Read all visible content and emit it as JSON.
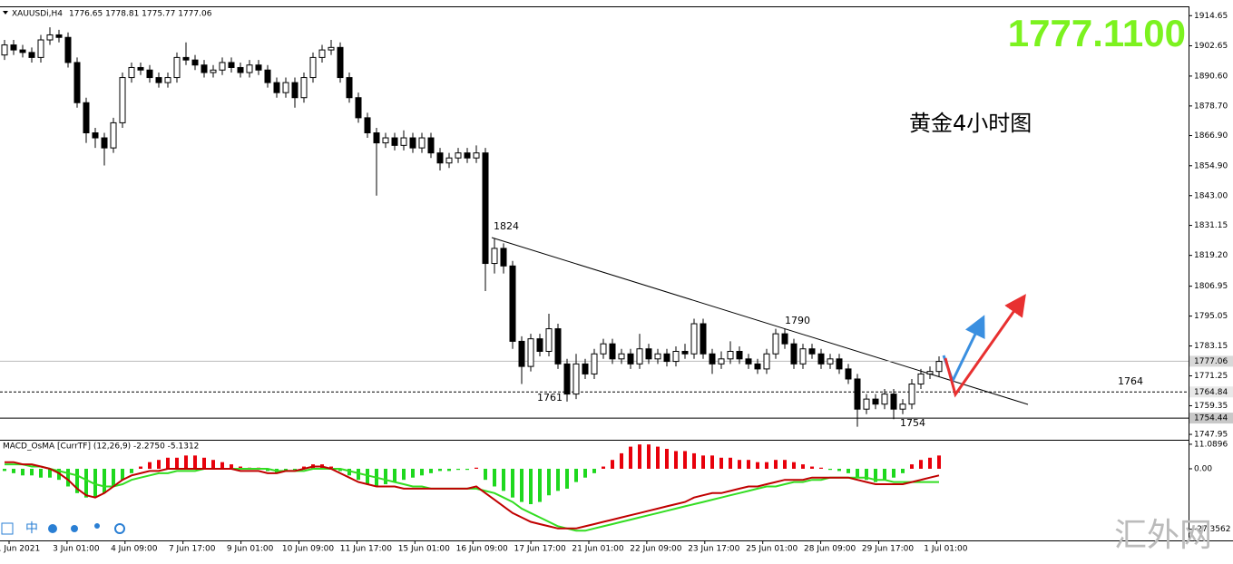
{
  "chart_data": [
    {
      "type": "candlestick",
      "symbol": "XAUUSDi,H4",
      "ohlc_label": "1776.65 1778.81 1775.77 1777.06",
      "price_display": "1777.1100",
      "subtitle": "黄金4小时图",
      "annotations": [
        "1824",
        "1790",
        "1761",
        "1754",
        "1764"
      ],
      "open": [
        1899,
        1903,
        1901,
        1900,
        1898,
        1905,
        1907,
        1906,
        1896,
        1880,
        1868,
        1866,
        1862,
        1872,
        1890,
        1894,
        1893,
        1890,
        1888,
        1890,
        1898,
        1897,
        1895,
        1892,
        1893,
        1896,
        1894,
        1892,
        1895,
        1893,
        1888,
        1884,
        1888,
        1882,
        1890,
        1898,
        1901,
        1902,
        1890,
        1882,
        1874,
        1868,
        1864,
        1866,
        1863,
        1866,
        1862,
        1866,
        1860,
        1856,
        1858,
        1860,
        1858,
        1860,
        1816,
        1822,
        1815,
        1785,
        1775,
        1786,
        1781,
        1790,
        1776,
        1764,
        1776,
        1772,
        1780,
        1784,
        1778,
        1780,
        1776,
        1782,
        1778,
        1780,
        1777,
        1781,
        1780,
        1792,
        1780,
        1776,
        1778,
        1781,
        1778,
        1776,
        1774,
        1780,
        1788,
        1784,
        1776,
        1782,
        1780,
        1776,
        1778,
        1774,
        1770,
        1758,
        1762,
        1760,
        1764,
        1758,
        1760,
        1768,
        1772,
        1773
      ],
      "high": [
        1905,
        1905,
        1903,
        1902,
        1907,
        1910,
        1909,
        1908,
        1898,
        1882,
        1870,
        1868,
        1874,
        1892,
        1896,
        1896,
        1895,
        1892,
        1892,
        1900,
        1904,
        1899,
        1897,
        1895,
        1898,
        1898,
        1896,
        1897,
        1897,
        1895,
        1890,
        1890,
        1890,
        1892,
        1900,
        1903,
        1905,
        1904,
        1892,
        1884,
        1876,
        1870,
        1868,
        1868,
        1869,
        1868,
        1868,
        1868,
        1862,
        1860,
        1862,
        1862,
        1863,
        1862,
        1826,
        1824,
        1817,
        1787,
        1788,
        1788,
        1796,
        1792,
        1778,
        1780,
        1778,
        1782,
        1786,
        1786,
        1782,
        1782,
        1788,
        1784,
        1782,
        1782,
        1783,
        1784,
        1794,
        1794,
        1782,
        1781,
        1785,
        1783,
        1780,
        1778,
        1782,
        1790,
        1790,
        1786,
        1784,
        1784,
        1782,
        1780,
        1780,
        1776,
        1772,
        1764,
        1764,
        1766,
        1766,
        1762,
        1770,
        1774,
        1775,
        1779
      ],
      "low": [
        1897,
        1899,
        1898,
        1896,
        1896,
        1903,
        1904,
        1894,
        1878,
        1864,
        1862,
        1855,
        1860,
        1870,
        1888,
        1891,
        1888,
        1886,
        1886,
        1888,
        1895,
        1893,
        1890,
        1890,
        1891,
        1892,
        1890,
        1890,
        1891,
        1886,
        1882,
        1882,
        1878,
        1880,
        1888,
        1896,
        1899,
        1888,
        1880,
        1872,
        1866,
        1843,
        1862,
        1861,
        1861,
        1860,
        1860,
        1858,
        1853,
        1854,
        1856,
        1856,
        1856,
        1805,
        1812,
        1812,
        1782,
        1768,
        1773,
        1779,
        1779,
        1774,
        1761,
        1762,
        1770,
        1770,
        1778,
        1776,
        1776,
        1774,
        1774,
        1776,
        1776,
        1775,
        1775,
        1778,
        1778,
        1778,
        1772,
        1774,
        1776,
        1776,
        1774,
        1772,
        1772,
        1778,
        1782,
        1774,
        1774,
        1778,
        1774,
        1774,
        1772,
        1768,
        1751,
        1756,
        1758,
        1758,
        1754,
        1756,
        1758,
        1766,
        1770,
        1771
      ],
      "close": [
        1903,
        1901,
        1900,
        1898,
        1905,
        1907,
        1906,
        1896,
        1880,
        1868,
        1866,
        1862,
        1872,
        1890,
        1894,
        1893,
        1890,
        1888,
        1890,
        1898,
        1897,
        1895,
        1892,
        1893,
        1896,
        1894,
        1892,
        1895,
        1893,
        1888,
        1884,
        1888,
        1882,
        1890,
        1898,
        1901,
        1902,
        1890,
        1882,
        1874,
        1868,
        1864,
        1866,
        1863,
        1866,
        1862,
        1866,
        1860,
        1856,
        1858,
        1860,
        1858,
        1860,
        1816,
        1822,
        1815,
        1785,
        1775,
        1786,
        1781,
        1790,
        1776,
        1764,
        1776,
        1772,
        1780,
        1784,
        1778,
        1780,
        1776,
        1782,
        1778,
        1780,
        1777,
        1781,
        1780,
        1792,
        1780,
        1776,
        1778,
        1781,
        1778,
        1776,
        1774,
        1780,
        1788,
        1784,
        1776,
        1782,
        1780,
        1776,
        1778,
        1774,
        1770,
        1758,
        1762,
        1760,
        1764,
        1758,
        1760,
        1768,
        1772,
        1773,
        1777
      ],
      "ylim": [
        1745.8,
        1918
      ],
      "yticks": [
        1914.65,
        1902.65,
        {
          "value": 1890.6,
          "label": "1890.60"
        },
        {
          "value": 1878.7,
          "label": "1878.70"
        },
        {
          "value": 1866.9,
          "label": "1866.90"
        },
        {
          "value": 1854.9,
          "label": "1854.90"
        },
        {
          "value": 1843,
          "label": "1843.00"
        },
        1831.15,
        {
          "value": 1819.2,
          "label": "1819.20"
        },
        1806.95,
        1795.05,
        1783.15,
        1771.25,
        1759.35,
        1747.95
      ],
      "levels": [
        1777.06,
        1764.84,
        1754.44
      ],
      "xtick_labels": [
        "1 Jun 2021",
        "3 Jun 01:00",
        "4 Jun 09:00",
        "7 Jun 17:00",
        "9 Jun 01:00",
        "10 Jun 09:00",
        "11 Jun 17:00",
        "15 Jun 01:00",
        "16 Jun 09:00",
        "17 Jun 17:00",
        "21 Jun 01:00",
        "22 Jun 09:00",
        "23 Jun 17:00",
        "25 Jun 01:00",
        "28 Jun 09:00",
        "29 Jun 17:00",
        "1 Jul 01:00"
      ],
      "toolbar_text": "中",
      "watermark": "汇外网"
    },
    {
      "type": "macd",
      "title": "MACD_OsMA [CurrTF] (12,26,9) -2.2750 -5.1312",
      "histogram": [
        -1,
        -2,
        -3,
        -3,
        -4,
        -4,
        -5,
        -8,
        -11,
        -13,
        -13,
        -11,
        -8,
        -5,
        -2,
        1,
        3,
        4,
        5,
        5,
        6,
        6,
        5,
        4,
        3,
        2,
        1,
        0.5,
        0.5,
        -1,
        -2,
        -1,
        -0.5,
        1,
        2,
        2,
        1,
        -1,
        -3,
        -5,
        -7,
        -8,
        -7,
        -6,
        -5,
        -4,
        -3,
        -2,
        -1,
        -1,
        -0.5,
        -0.5,
        0.5,
        -5,
        -8,
        -10,
        -13,
        -15,
        -16,
        -15,
        -12,
        -10,
        -9,
        -6,
        -4,
        -2,
        1,
        4,
        7,
        10,
        11,
        11,
        10,
        9,
        8,
        8,
        7,
        6,
        6,
        5,
        5,
        4,
        4,
        3,
        3,
        4,
        4,
        3,
        2,
        1,
        0.5,
        -0.5,
        -1,
        -2,
        -4,
        -5,
        -6,
        -5,
        -4,
        -2,
        2,
        4,
        5,
        6
      ],
      "main": [
        3,
        3,
        2,
        2,
        1,
        0,
        -2,
        -5,
        -9,
        -12,
        -13,
        -11,
        -8,
        -5,
        -3,
        -2,
        -1,
        -1,
        0,
        0,
        0,
        0,
        0,
        0,
        0,
        0,
        -1,
        -1,
        -1,
        -2,
        -2,
        -1,
        -1,
        0,
        1,
        1,
        0,
        -2,
        -4,
        -6,
        -7,
        -8,
        -8,
        -8,
        -9,
        -9,
        -9,
        -9,
        -9,
        -9,
        -9,
        -9,
        -8,
        -11,
        -14,
        -17,
        -20,
        -22,
        -24,
        -25,
        -26,
        -27,
        -27,
        -27,
        -26,
        -25,
        -24,
        -23,
        -22,
        -21,
        -20,
        -19,
        -18,
        -17,
        -16,
        -15,
        -13,
        -12,
        -11,
        -11,
        -10,
        -9,
        -8,
        -8,
        -7,
        -6,
        -5,
        -5,
        -5,
        -4,
        -4,
        -4,
        -4,
        -4,
        -5,
        -6,
        -7,
        -7,
        -7,
        -7,
        -6,
        -5,
        -4,
        -3
      ],
      "signal": [
        2,
        2,
        2,
        1,
        1,
        0,
        -1,
        -2,
        -3,
        -5,
        -7,
        -8,
        -8,
        -7,
        -5,
        -4,
        -3,
        -2,
        -2,
        -1,
        -1,
        -1,
        0,
        0,
        0,
        0,
        0,
        0,
        0,
        0,
        -1,
        -1,
        -1,
        -1,
        0,
        0,
        0,
        0,
        -1,
        -2,
        -3,
        -4,
        -5,
        -6,
        -7,
        -8,
        -8,
        -9,
        -9,
        -9,
        -9,
        -9,
        -9,
        -10,
        -11,
        -13,
        -15,
        -18,
        -20,
        -22,
        -24,
        -26,
        -27,
        -28,
        -28,
        -27,
        -26,
        -25,
        -24,
        -23,
        -22,
        -21,
        -20,
        -19,
        -18,
        -17,
        -16,
        -15,
        -14,
        -13,
        -12,
        -11,
        -10,
        -9,
        -8,
        -8,
        -7,
        -6,
        -6,
        -5,
        -5,
        -4,
        -4,
        -4,
        -4,
        -4,
        -5,
        -5,
        -6,
        -6,
        -6,
        -6,
        -6,
        -6
      ],
      "up_color": "#e8000b",
      "down_color": "#1ed81e",
      "main_color": "#c00000",
      "signal_color": "#33dd22",
      "ylim": [
        -32.4,
        12.7
      ],
      "yticks": [
        11.0896,
        {
          "value": 0,
          "label": "0.00"
        },
        -27.3562
      ]
    }
  ]
}
